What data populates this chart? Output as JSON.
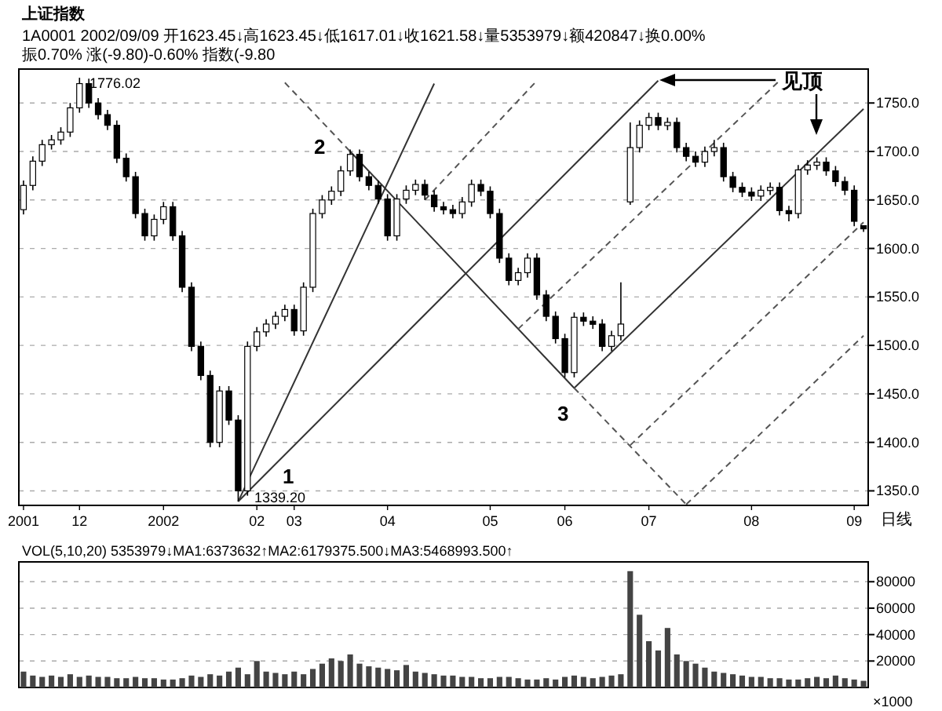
{
  "chart_data": [
    {
      "type": "candlestick",
      "title": "上证指数",
      "subtitle": "1A0001 2002/09/09 开1623.45↓高1623.45↓低1617.01↓收1621.58↓量5353979↓额420847↓换0.00% 振0.70% 涨(-9.80)-0.60% 指数(-9.80",
      "categories": [
        "2001",
        null,
        null,
        null,
        null,
        null,
        "12",
        null,
        null,
        null,
        null,
        null,
        null,
        null,
        null,
        "2002",
        null,
        null,
        null,
        null,
        null,
        null,
        null,
        null,
        null,
        "02",
        null,
        null,
        null,
        "03",
        null,
        null,
        null,
        null,
        null,
        null,
        null,
        null,
        null,
        "04",
        null,
        null,
        null,
        null,
        null,
        null,
        null,
        null,
        null,
        null,
        "05",
        null,
        null,
        null,
        null,
        null,
        null,
        null,
        "06",
        null,
        null,
        null,
        null,
        null,
        null,
        null,
        null,
        "07",
        null,
        null,
        null,
        null,
        null,
        null,
        null,
        null,
        null,
        null,
        "08",
        null,
        null,
        null,
        null,
        null,
        null,
        null,
        null,
        null,
        null,
        "09",
        null
      ],
      "ohlc": [
        [
          1640,
          1670,
          1635,
          1665
        ],
        [
          1665,
          1695,
          1660,
          1690
        ],
        [
          1690,
          1712,
          1685,
          1707
        ],
        [
          1707,
          1717,
          1702,
          1712
        ],
        [
          1712,
          1725,
          1707,
          1720
        ],
        [
          1720,
          1750,
          1715,
          1745
        ],
        [
          1745,
          1776.02,
          1740,
          1770
        ],
        [
          1770,
          1775,
          1745,
          1750
        ],
        [
          1750,
          1755,
          1733,
          1738
        ],
        [
          1738,
          1743,
          1722,
          1727
        ],
        [
          1727,
          1732,
          1688,
          1693
        ],
        [
          1693,
          1698,
          1669,
          1674
        ],
        [
          1674,
          1679,
          1631,
          1636
        ],
        [
          1636,
          1641,
          1608,
          1613
        ],
        [
          1613,
          1635,
          1608,
          1630
        ],
        [
          1630,
          1648,
          1625,
          1643
        ],
        [
          1643,
          1648,
          1608,
          1613
        ],
        [
          1613,
          1618,
          1555,
          1560
        ],
        [
          1560,
          1565,
          1494,
          1499
        ],
        [
          1499,
          1504,
          1464,
          1469
        ],
        [
          1469,
          1474,
          1395,
          1400
        ],
        [
          1400,
          1458,
          1395,
          1453
        ],
        [
          1453,
          1458,
          1418,
          1423
        ],
        [
          1423,
          1428,
          1339.2,
          1350
        ],
        [
          1350,
          1504,
          1345,
          1499
        ],
        [
          1499,
          1519,
          1494,
          1514
        ],
        [
          1514,
          1527,
          1509,
          1522
        ],
        [
          1522,
          1535,
          1517,
          1530
        ],
        [
          1530,
          1542,
          1525,
          1537
        ],
        [
          1537,
          1542,
          1510,
          1515
        ],
        [
          1515,
          1565,
          1510,
          1560
        ],
        [
          1560,
          1641,
          1555,
          1636
        ],
        [
          1636,
          1655,
          1631,
          1650
        ],
        [
          1650,
          1664,
          1645,
          1659
        ],
        [
          1659,
          1685,
          1654,
          1680
        ],
        [
          1680,
          1702,
          1675,
          1697
        ],
        [
          1697,
          1702,
          1669,
          1674
        ],
        [
          1674,
          1679,
          1660,
          1665
        ],
        [
          1665,
          1670,
          1646,
          1651
        ],
        [
          1651,
          1656,
          1608,
          1613
        ],
        [
          1613,
          1656,
          1608,
          1651
        ],
        [
          1651,
          1665,
          1646,
          1660
        ],
        [
          1660,
          1671,
          1655,
          1666
        ],
        [
          1666,
          1671,
          1650,
          1655
        ],
        [
          1655,
          1660,
          1638,
          1643
        ],
        [
          1643,
          1648,
          1635,
          1640
        ],
        [
          1640,
          1645,
          1631,
          1636
        ],
        [
          1636,
          1653,
          1631,
          1648
        ],
        [
          1648,
          1671,
          1643,
          1666
        ],
        [
          1666,
          1671,
          1654,
          1659
        ],
        [
          1659,
          1664,
          1631,
          1636
        ],
        [
          1636,
          1641,
          1585,
          1590
        ],
        [
          1590,
          1595,
          1562,
          1567
        ],
        [
          1567,
          1580,
          1562,
          1575
        ],
        [
          1575,
          1595,
          1570,
          1590
        ],
        [
          1590,
          1595,
          1547,
          1552
        ],
        [
          1552,
          1557,
          1525,
          1530
        ],
        [
          1530,
          1535,
          1502,
          1507
        ],
        [
          1507,
          1512,
          1467,
          1472
        ],
        [
          1472,
          1534,
          1467,
          1529
        ],
        [
          1529,
          1534,
          1520,
          1525
        ],
        [
          1525,
          1530,
          1517,
          1522
        ],
        [
          1522,
          1527,
          1494,
          1499
        ],
        [
          1499,
          1515,
          1494,
          1510
        ],
        [
          1510,
          1565,
          1505,
          1522
        ],
        [
          1648,
          1730,
          1645,
          1704
        ],
        [
          1704,
          1732,
          1699,
          1727
        ],
        [
          1727,
          1740,
          1722,
          1735
        ],
        [
          1735,
          1740,
          1722,
          1727
        ],
        [
          1727,
          1735,
          1722,
          1730
        ],
        [
          1730,
          1735,
          1699,
          1704
        ],
        [
          1704,
          1709,
          1690,
          1695
        ],
        [
          1695,
          1700,
          1684,
          1689
        ],
        [
          1689,
          1705,
          1684,
          1700
        ],
        [
          1700,
          1712,
          1695,
          1704
        ],
        [
          1704,
          1709,
          1669,
          1674
        ],
        [
          1674,
          1679,
          1658,
          1663
        ],
        [
          1663,
          1668,
          1653,
          1658
        ],
        [
          1658,
          1663,
          1649,
          1654
        ],
        [
          1654,
          1665,
          1649,
          1660
        ],
        [
          1660,
          1668,
          1655,
          1663
        ],
        [
          1663,
          1668,
          1634,
          1639
        ],
        [
          1639,
          1644,
          1628,
          1636
        ],
        [
          1636,
          1686,
          1631,
          1681
        ],
        [
          1681,
          1691,
          1676,
          1686
        ],
        [
          1686,
          1694,
          1681,
          1689
        ],
        [
          1689,
          1694,
          1675,
          1680
        ],
        [
          1680,
          1685,
          1664,
          1669
        ],
        [
          1669,
          1674,
          1655,
          1660
        ],
        [
          1660,
          1665,
          1623,
          1628
        ],
        [
          1623.45,
          1623.45,
          1617.01,
          1621.58
        ]
      ],
      "series": [
        {
          "type": "line",
          "values": [
            null,
            null,
            null,
            null,
            null,
            null,
            null,
            null,
            null,
            null,
            null,
            null,
            null,
            null,
            null,
            null,
            null,
            null,
            null,
            null,
            null,
            null,
            null,
            1339,
            null,
            null,
            null,
            null,
            null,
            null,
            null,
            null,
            null,
            null,
            null,
            null,
            null,
            null,
            null,
            null,
            null,
            null,
            null,
            null,
            1770,
            null,
            null,
            null,
            null,
            null,
            null,
            null,
            null,
            null,
            null,
            null,
            null,
            null,
            null,
            null,
            null,
            null,
            null,
            null,
            null,
            null,
            null,
            null,
            null,
            null,
            null,
            null,
            null,
            null,
            null,
            null,
            null,
            null,
            null,
            null,
            null,
            null,
            null,
            null,
            null,
            null,
            null,
            null,
            null,
            null,
            null
          ],
          "color": "#333333",
          "line_style": "solid"
        },
        {
          "type": "line",
          "values": [
            null,
            null,
            null,
            null,
            null,
            null,
            null,
            null,
            null,
            null,
            null,
            null,
            null,
            null,
            null,
            null,
            null,
            null,
            null,
            null,
            null,
            null,
            null,
            1339,
            null,
            null,
            null,
            null,
            null,
            null,
            null,
            null,
            null,
            null,
            null,
            null,
            null,
            null,
            null,
            null,
            null,
            null,
            null,
            null,
            null,
            null,
            null,
            null,
            null,
            null,
            null,
            null,
            null,
            null,
            null,
            null,
            null,
            null,
            null,
            null,
            null,
            null,
            null,
            null,
            null,
            null,
            null,
            null,
            1773,
            null,
            null,
            null,
            null,
            null,
            null,
            null,
            null,
            null,
            null,
            null,
            null,
            null,
            null,
            null,
            null,
            null,
            null,
            null,
            null,
            null,
            null
          ],
          "color": "#333333",
          "line_style": "solid"
        },
        {
          "type": "line",
          "values": [
            null,
            null,
            null,
            null,
            null,
            null,
            null,
            null,
            null,
            null,
            null,
            null,
            null,
            null,
            null,
            null,
            null,
            null,
            null,
            null,
            null,
            null,
            null,
            null,
            null,
            null,
            null,
            null,
            null,
            null,
            null,
            null,
            null,
            null,
            null,
            1700,
            null,
            null,
            null,
            null,
            null,
            null,
            null,
            null,
            null,
            null,
            null,
            null,
            null,
            null,
            null,
            null,
            null,
            null,
            null,
            null,
            null,
            null,
            null,
            1456,
            null,
            null,
            null,
            null,
            null,
            null,
            null,
            null,
            null,
            null,
            null,
            null,
            null,
            null,
            null,
            null,
            null,
            null,
            null,
            null,
            null,
            null,
            null,
            null,
            null,
            null,
            null,
            null,
            null,
            null,
            null
          ],
          "color": "#333333",
          "line_style": "solid"
        },
        {
          "type": "line",
          "values": [
            null,
            null,
            null,
            null,
            null,
            null,
            null,
            null,
            null,
            null,
            null,
            null,
            null,
            null,
            null,
            null,
            null,
            null,
            null,
            null,
            null,
            null,
            null,
            null,
            null,
            null,
            null,
            null,
            null,
            null,
            null,
            null,
            null,
            null,
            null,
            null,
            null,
            null,
            null,
            null,
            null,
            null,
            null,
            null,
            null,
            null,
            null,
            null,
            null,
            null,
            null,
            null,
            null,
            null,
            null,
            null,
            null,
            null,
            null,
            1456,
            null,
            null,
            null,
            null,
            null,
            null,
            null,
            null,
            null,
            null,
            null,
            null,
            null,
            null,
            null,
            null,
            null,
            null,
            null,
            null,
            null,
            null,
            null,
            null,
            null,
            null,
            null,
            null,
            null,
            null,
            1744
          ],
          "color": "#333333",
          "line_style": "solid"
        },
        {
          "type": "line",
          "values": [
            null,
            null,
            null,
            null,
            null,
            null,
            null,
            null,
            null,
            null,
            null,
            null,
            null,
            null,
            null,
            null,
            null,
            null,
            null,
            null,
            null,
            null,
            null,
            null,
            null,
            null,
            null,
            null,
            1771,
            null,
            null,
            null,
            null,
            null,
            null,
            1700,
            null,
            null,
            null,
            null,
            null,
            null,
            null,
            null,
            null,
            null,
            null,
            null,
            null,
            null,
            null,
            null,
            null,
            null,
            null,
            null,
            null,
            null,
            null,
            null,
            null,
            null,
            null,
            null,
            null,
            null,
            null,
            null,
            null,
            null,
            null,
            null,
            null,
            null,
            null,
            null,
            null,
            null,
            null,
            null,
            null,
            null,
            null,
            null,
            null,
            null,
            null,
            null,
            null,
            null,
            null
          ],
          "color": "#555555",
          "line_style": "dashed"
        },
        {
          "type": "line",
          "values": [
            null,
            null,
            null,
            null,
            null,
            null,
            null,
            null,
            null,
            null,
            null,
            null,
            null,
            null,
            null,
            null,
            null,
            null,
            null,
            null,
            null,
            null,
            null,
            null,
            null,
            null,
            null,
            null,
            null,
            null,
            null,
            null,
            null,
            null,
            null,
            null,
            null,
            null,
            null,
            null,
            null,
            null,
            null,
            null,
            null,
            null,
            null,
            null,
            null,
            null,
            null,
            null,
            null,
            null,
            null,
            null,
            null,
            null,
            null,
            1456,
            null,
            null,
            null,
            null,
            null,
            null,
            null,
            null,
            null,
            null,
            null,
            1336,
            null,
            null,
            null,
            null,
            null,
            null,
            null,
            null,
            null,
            null,
            null,
            null,
            null,
            null,
            null,
            null,
            null,
            null,
            null
          ],
          "color": "#555555",
          "line_style": "dashed"
        },
        {
          "type": "line",
          "values": [
            null,
            null,
            null,
            null,
            null,
            null,
            null,
            null,
            null,
            null,
            null,
            null,
            null,
            null,
            null,
            null,
            null,
            null,
            null,
            null,
            null,
            null,
            null,
            null,
            null,
            null,
            null,
            null,
            null,
            null,
            null,
            null,
            null,
            null,
            null,
            null,
            null,
            null,
            null,
            null,
            null,
            null,
            null,
            null,
            null,
            null,
            null,
            null,
            null,
            null,
            null,
            null,
            null,
            null,
            null,
            null,
            null,
            null,
            null,
            null,
            null,
            null,
            null,
            null,
            null,
            null,
            null,
            null,
            null,
            null,
            null,
            1336,
            null,
            null,
            null,
            null,
            null,
            null,
            null,
            null,
            null,
            null,
            null,
            null,
            null,
            null,
            null,
            null,
            null,
            null,
            1510
          ],
          "color": "#555555",
          "line_style": "dashed"
        },
        {
          "type": "line",
          "values": [
            null,
            null,
            null,
            null,
            null,
            null,
            null,
            null,
            null,
            null,
            null,
            null,
            null,
            null,
            null,
            null,
            null,
            null,
            null,
            null,
            null,
            null,
            null,
            null,
            null,
            null,
            null,
            null,
            null,
            null,
            null,
            null,
            null,
            null,
            null,
            null,
            null,
            null,
            null,
            null,
            null,
            null,
            null,
            null,
            null,
            null,
            null,
            null,
            null,
            null,
            null,
            null,
            null,
            null,
            null,
            null,
            null,
            null,
            null,
            null,
            null,
            null,
            null,
            null,
            null,
            1397,
            null,
            null,
            null,
            null,
            null,
            null,
            null,
            null,
            null,
            null,
            null,
            null,
            null,
            null,
            null,
            null,
            null,
            null,
            null,
            null,
            null,
            null,
            null,
            null,
            1627
          ],
          "color": "#555555",
          "line_style": "dashed"
        },
        {
          "type": "line",
          "values": [
            null,
            null,
            null,
            null,
            null,
            null,
            null,
            null,
            null,
            null,
            null,
            null,
            null,
            null,
            null,
            null,
            null,
            null,
            null,
            null,
            null,
            null,
            null,
            null,
            null,
            null,
            null,
            null,
            null,
            null,
            null,
            null,
            null,
            null,
            null,
            null,
            null,
            null,
            null,
            null,
            null,
            null,
            null,
            null,
            null,
            null,
            null,
            null,
            null,
            null,
            null,
            null,
            null,
            1517,
            null,
            null,
            null,
            null,
            null,
            null,
            null,
            null,
            null,
            null,
            null,
            null,
            null,
            null,
            null,
            null,
            null,
            null,
            null,
            null,
            null,
            null,
            null,
            null,
            null,
            null,
            null,
            1773,
            null,
            null,
            null,
            null,
            null,
            null,
            null,
            null,
            null
          ],
          "color": "#555555",
          "line_style": "dashed"
        },
        {
          "type": "line",
          "values": [
            null,
            null,
            null,
            null,
            null,
            null,
            null,
            null,
            null,
            null,
            null,
            null,
            null,
            null,
            null,
            null,
            null,
            null,
            null,
            null,
            null,
            null,
            null,
            null,
            null,
            null,
            null,
            null,
            null,
            null,
            null,
            null,
            null,
            null,
            null,
            null,
            null,
            null,
            null,
            null,
            null,
            null,
            null,
            1650,
            null,
            null,
            null,
            null,
            null,
            null,
            null,
            null,
            null,
            null,
            null,
            1773,
            null,
            null,
            null,
            null,
            null,
            null,
            null,
            null,
            null,
            null,
            null,
            null,
            null,
            null,
            null,
            null,
            null,
            null,
            null,
            null,
            null,
            null,
            null,
            null,
            null,
            null,
            null,
            null,
            null,
            null,
            null,
            null,
            null,
            null,
            null
          ],
          "color": "#555555",
          "line_style": "dashed"
        }
      ],
      "ylim": [
        1335,
        1785
      ],
      "yticks": [
        {
          "value": 1350,
          "label": "1350.0"
        },
        {
          "value": 1400,
          "label": "1400.0"
        },
        {
          "value": 1450,
          "label": "1450.0"
        },
        {
          "value": 1500,
          "label": "1500.0"
        },
        {
          "value": 1550,
          "label": "1550.0"
        },
        {
          "value": 1600,
          "label": "1600.0"
        },
        {
          "value": 1650,
          "label": "1650.0"
        },
        {
          "value": 1700,
          "label": "1700.0"
        },
        {
          "value": 1750,
          "label": "1750.0"
        }
      ],
      "grid": "y",
      "annotations": [
        "见顶",
        "日线",
        "1776.02",
        "1339.20",
        "1",
        "2",
        "3"
      ]
    },
    {
      "type": "bar",
      "title": "VOL(5,10,20) 5353979↓MA1:6373632↑MA2:6179375.500↓MA3:5468993.500↑",
      "categories": [
        null,
        null,
        null,
        null,
        null,
        null,
        null,
        null,
        null,
        null,
        null,
        null,
        null,
        null,
        null,
        null,
        null,
        null,
        null,
        null,
        null,
        null,
        null,
        null,
        null,
        null,
        null,
        null,
        null,
        null,
        null,
        null,
        null,
        null,
        null,
        null,
        null,
        null,
        null,
        null,
        null,
        null,
        null,
        null,
        null,
        null,
        null,
        null,
        null,
        null,
        null,
        null,
        null,
        null,
        null,
        null,
        null,
        null,
        null,
        null,
        null,
        null,
        null,
        null,
        null,
        null,
        null,
        null,
        null,
        null,
        null,
        null,
        null,
        null,
        null,
        null,
        null,
        null,
        null,
        null,
        null,
        null,
        null,
        null,
        null,
        null,
        null,
        null,
        null,
        null,
        null
      ],
      "series": [
        {
          "color": "#444444",
          "values": [
            12000,
            9000,
            8000,
            9000,
            8000,
            10000,
            8000,
            9000,
            8000,
            8000,
            7000,
            7000,
            8000,
            7000,
            7000,
            6000,
            6000,
            7000,
            9000,
            8000,
            10000,
            9000,
            12000,
            15000,
            10000,
            20000,
            12000,
            11000,
            10000,
            12000,
            10000,
            14000,
            18000,
            22000,
            20000,
            25000,
            18000,
            16000,
            15000,
            14000,
            13000,
            17000,
            12000,
            11000,
            10000,
            9000,
            9000,
            8000,
            8000,
            7000,
            7000,
            8000,
            8000,
            7000,
            6000,
            6000,
            7000,
            6000,
            8000,
            9000,
            8000,
            7000,
            8000,
            9000,
            10000,
            88000,
            55000,
            35000,
            28000,
            45000,
            25000,
            20000,
            18000,
            15000,
            12000,
            11000,
            10000,
            9000,
            8000,
            8000,
            7000,
            7000,
            6000,
            6000,
            7000,
            8000,
            7000,
            9000,
            7000,
            6000,
            5000
          ]
        }
      ],
      "ylim": [
        0,
        95000
      ],
      "yticks": [
        20000,
        40000,
        60000,
        80000
      ],
      "ylabel": "×1000",
      "grid": "y",
      "tick_labels": "y"
    }
  ]
}
